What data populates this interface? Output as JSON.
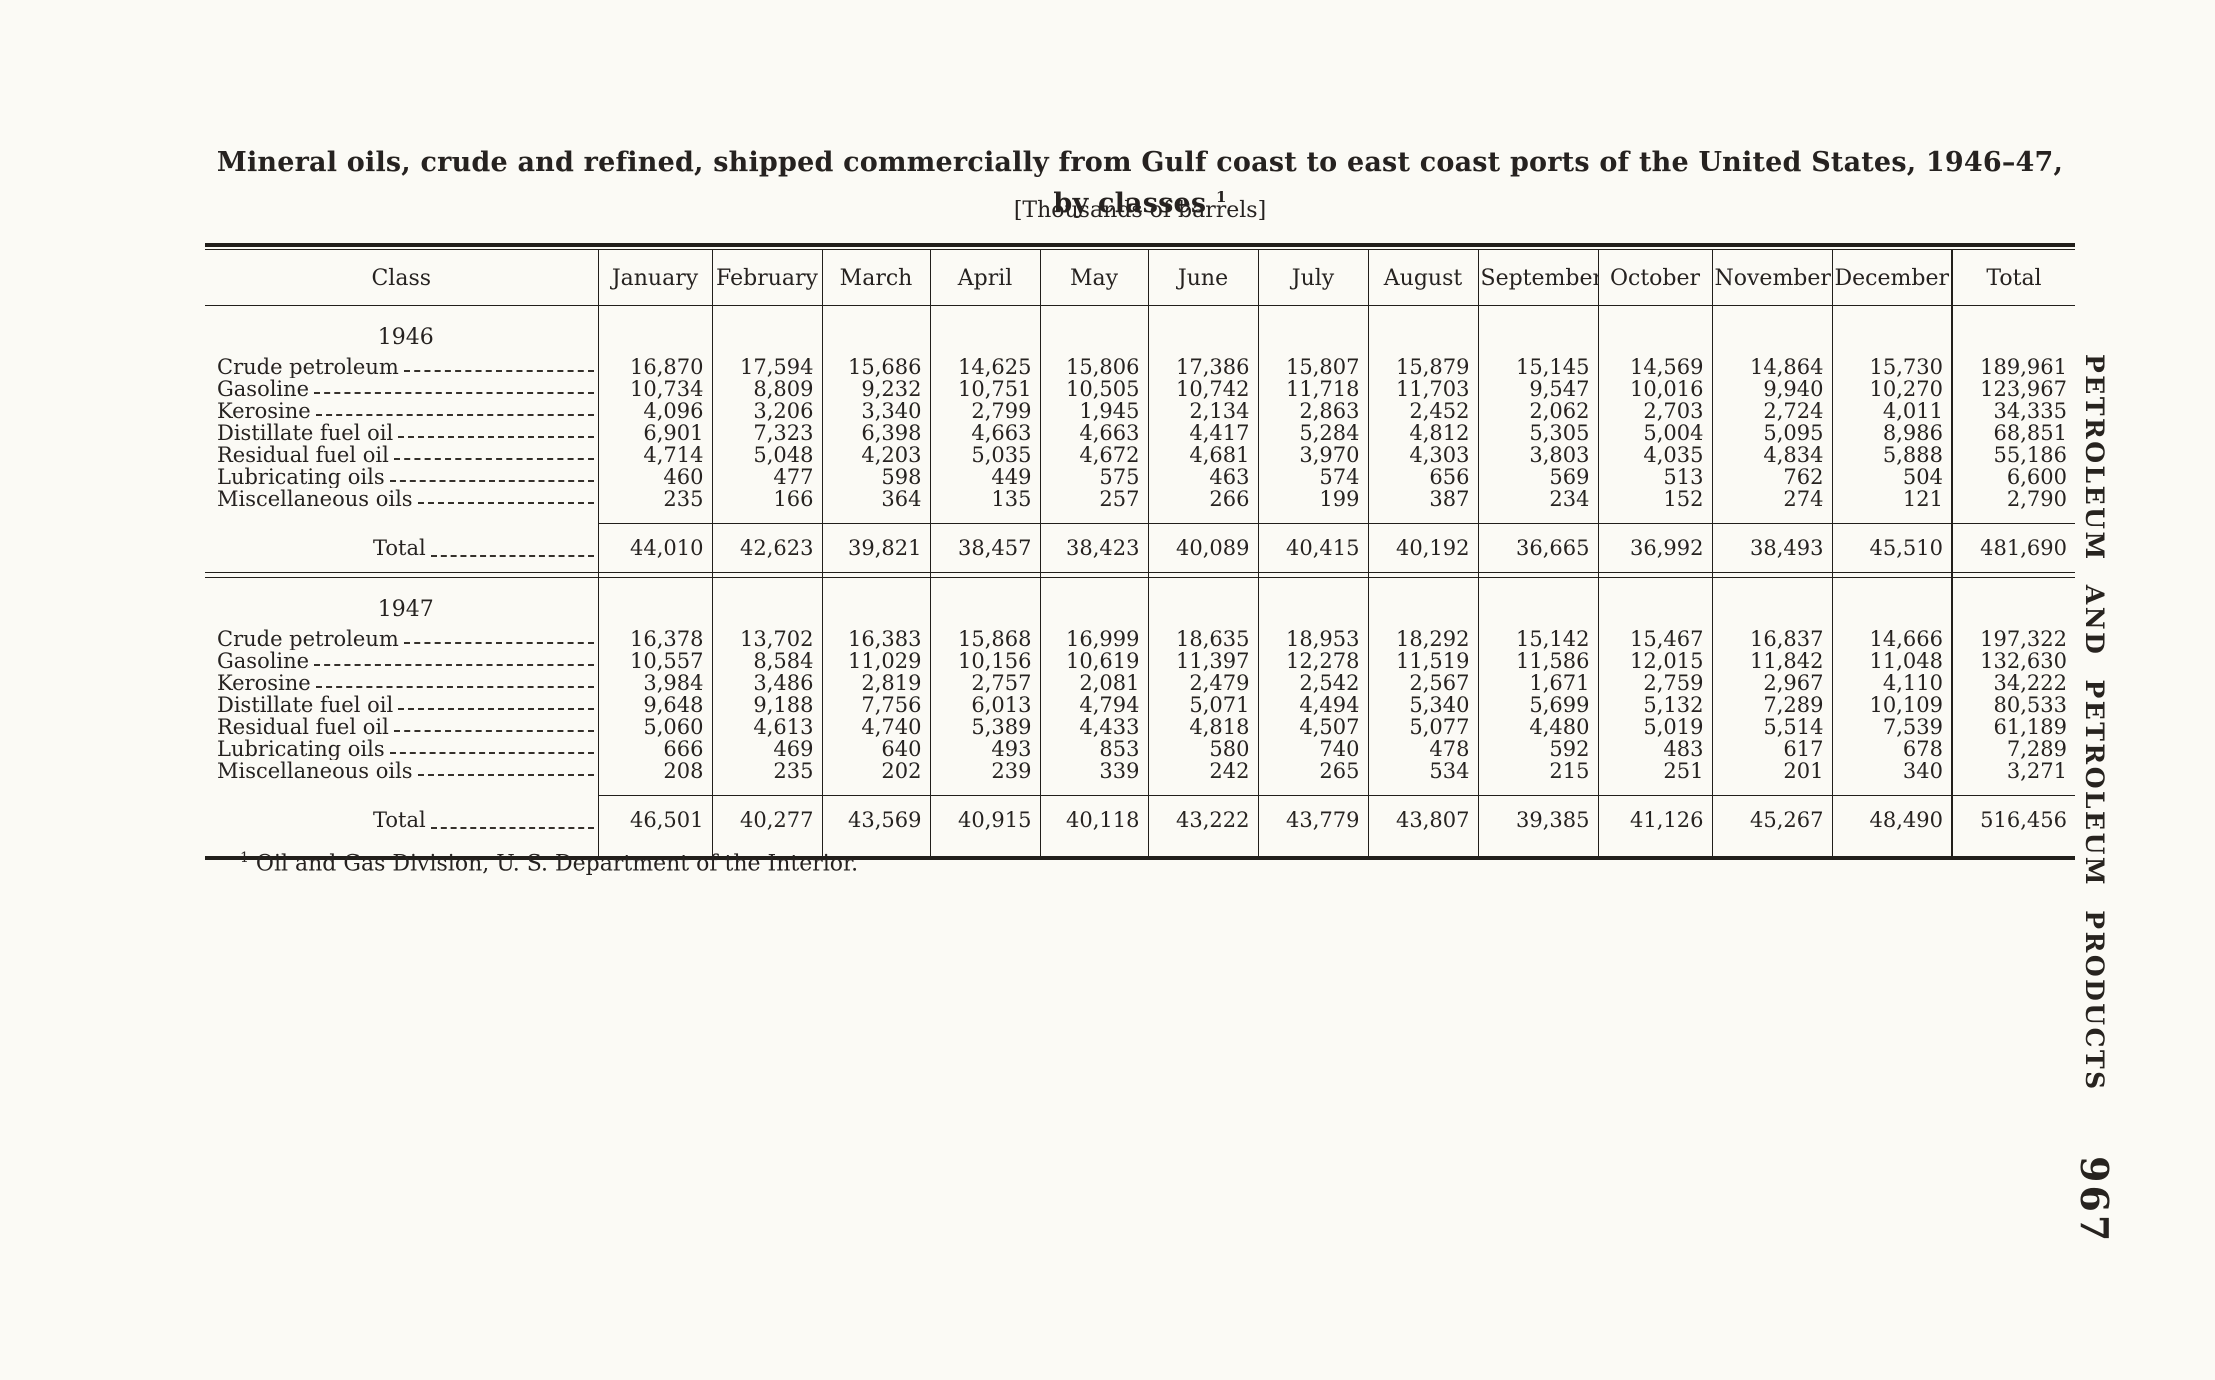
{
  "page": {
    "title": "Mineral oils, crude and refined, shipped commercially from Gulf coast to east coast ports of the United States, 1946–47, by classes",
    "title_footnote_marker": "1",
    "subtitle": "[Thousands of barrels]",
    "footnote_marker": "1",
    "footnote": "Oil and Gas Division, U. S. Department of the Interior.",
    "running_head": "PETROLEUM AND PETROLEUM PRODUCTS",
    "page_number": "967"
  },
  "table": {
    "columns": [
      "Class",
      "January",
      "February",
      "March",
      "April",
      "May",
      "June",
      "July",
      "August",
      "September",
      "October",
      "November",
      "December",
      "Total"
    ],
    "sections": [
      {
        "year": "1946",
        "rows": [
          {
            "class": "Crude petroleum",
            "values": [
              "16,870",
              "17,594",
              "15,686",
              "14,625",
              "15,806",
              "17,386",
              "15,807",
              "15,879",
              "15,145",
              "14,569",
              "14,864",
              "15,730",
              "189,961"
            ]
          },
          {
            "class": "Gasoline",
            "values": [
              "10,734",
              "8,809",
              "9,232",
              "10,751",
              "10,505",
              "10,742",
              "11,718",
              "11,703",
              "9,547",
              "10,016",
              "9,940",
              "10,270",
              "123,967"
            ]
          },
          {
            "class": "Kerosine",
            "values": [
              "4,096",
              "3,206",
              "3,340",
              "2,799",
              "1,945",
              "2,134",
              "2,863",
              "2,452",
              "2,062",
              "2,703",
              "2,724",
              "4,011",
              "34,335"
            ]
          },
          {
            "class": "Distillate fuel oil",
            "values": [
              "6,901",
              "7,323",
              "6,398",
              "4,663",
              "4,663",
              "4,417",
              "5,284",
              "4,812",
              "5,305",
              "5,004",
              "5,095",
              "8,986",
              "68,851"
            ]
          },
          {
            "class": "Residual fuel oil",
            "values": [
              "4,714",
              "5,048",
              "4,203",
              "5,035",
              "4,672",
              "4,681",
              "3,970",
              "4,303",
              "3,803",
              "4,035",
              "4,834",
              "5,888",
              "55,186"
            ]
          },
          {
            "class": "Lubricating oils",
            "values": [
              "460",
              "477",
              "598",
              "449",
              "575",
              "463",
              "574",
              "656",
              "569",
              "513",
              "762",
              "504",
              "6,600"
            ]
          },
          {
            "class": "Miscellaneous oils",
            "values": [
              "235",
              "166",
              "364",
              "135",
              "257",
              "266",
              "199",
              "387",
              "234",
              "152",
              "274",
              "121",
              "2,790"
            ]
          }
        ],
        "total": {
          "class": "Total",
          "values": [
            "44,010",
            "42,623",
            "39,821",
            "38,457",
            "38,423",
            "40,089",
            "40,415",
            "40,192",
            "36,665",
            "36,992",
            "38,493",
            "45,510",
            "481,690"
          ]
        }
      },
      {
        "year": "1947",
        "rows": [
          {
            "class": "Crude petroleum",
            "values": [
              "16,378",
              "13,702",
              "16,383",
              "15,868",
              "16,999",
              "18,635",
              "18,953",
              "18,292",
              "15,142",
              "15,467",
              "16,837",
              "14,666",
              "197,322"
            ]
          },
          {
            "class": "Gasoline",
            "values": [
              "10,557",
              "8,584",
              "11,029",
              "10,156",
              "10,619",
              "11,397",
              "12,278",
              "11,519",
              "11,586",
              "12,015",
              "11,842",
              "11,048",
              "132,630"
            ]
          },
          {
            "class": "Kerosine",
            "values": [
              "3,984",
              "3,486",
              "2,819",
              "2,757",
              "2,081",
              "2,479",
              "2,542",
              "2,567",
              "1,671",
              "2,759",
              "2,967",
              "4,110",
              "34,222"
            ]
          },
          {
            "class": "Distillate fuel oil",
            "values": [
              "9,648",
              "9,188",
              "7,756",
              "6,013",
              "4,794",
              "5,071",
              "4,494",
              "5,340",
              "5,699",
              "5,132",
              "7,289",
              "10,109",
              "80,533"
            ]
          },
          {
            "class": "Residual fuel oil",
            "values": [
              "5,060",
              "4,613",
              "4,740",
              "5,389",
              "4,433",
              "4,818",
              "4,507",
              "5,077",
              "4,480",
              "5,019",
              "5,514",
              "7,539",
              "61,189"
            ]
          },
          {
            "class": "Lubricating oils",
            "values": [
              "666",
              "469",
              "640",
              "493",
              "853",
              "580",
              "740",
              "478",
              "592",
              "483",
              "617",
              "678",
              "7,289"
            ]
          },
          {
            "class": "Miscellaneous oils",
            "values": [
              "208",
              "235",
              "202",
              "239",
              "339",
              "242",
              "265",
              "534",
              "215",
              "251",
              "201",
              "340",
              "3,271"
            ]
          }
        ],
        "total": {
          "class": "Total",
          "values": [
            "46,501",
            "40,277",
            "43,569",
            "40,915",
            "40,118",
            "43,222",
            "43,779",
            "43,807",
            "39,385",
            "41,126",
            "45,267",
            "48,490",
            "516,456"
          ]
        }
      }
    ]
  }
}
